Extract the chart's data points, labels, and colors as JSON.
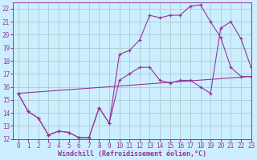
{
  "xlabel": "Windchill (Refroidissement éolien,°C)",
  "bg_color": "#cceeff",
  "grid_color": "#aacccc",
  "line_color": "#993399",
  "line1_x": [
    0,
    1,
    2,
    3,
    4,
    5,
    6,
    7,
    8,
    9,
    10,
    11,
    12,
    13,
    14,
    15,
    16,
    17,
    18,
    19,
    20,
    21,
    22,
    23
  ],
  "line1_y": [
    15.5,
    14.1,
    13.6,
    12.3,
    12.6,
    12.5,
    12.1,
    12.1,
    14.4,
    13.2,
    18.5,
    18.8,
    19.6,
    21.5,
    21.3,
    21.5,
    21.5,
    22.2,
    22.3,
    21.0,
    19.8,
    17.5,
    16.8,
    16.8
  ],
  "line2_x": [
    0,
    1,
    2,
    3,
    4,
    5,
    6,
    7,
    8,
    9,
    10,
    11,
    12,
    13,
    14,
    15,
    16,
    17,
    18,
    19,
    20,
    21,
    22,
    23
  ],
  "line2_y": [
    15.5,
    14.1,
    13.6,
    12.3,
    12.6,
    12.5,
    12.1,
    12.1,
    14.4,
    13.2,
    16.5,
    17.0,
    17.5,
    17.5,
    16.5,
    16.3,
    16.5,
    16.5,
    16.0,
    15.5,
    20.5,
    21.0,
    19.7,
    17.5
  ],
  "line3_x": [
    0,
    23
  ],
  "line3_y": [
    15.5,
    16.8
  ],
  "xlim": [
    -0.5,
    23
  ],
  "ylim": [
    12,
    22.5
  ],
  "yticks": [
    12,
    13,
    14,
    15,
    16,
    17,
    18,
    19,
    20,
    21,
    22
  ],
  "xticks": [
    0,
    1,
    2,
    3,
    4,
    5,
    6,
    7,
    8,
    9,
    10,
    11,
    12,
    13,
    14,
    15,
    16,
    17,
    18,
    19,
    20,
    21,
    22,
    23
  ],
  "tick_fontsize": 5.5,
  "xlabel_fontsize": 6
}
